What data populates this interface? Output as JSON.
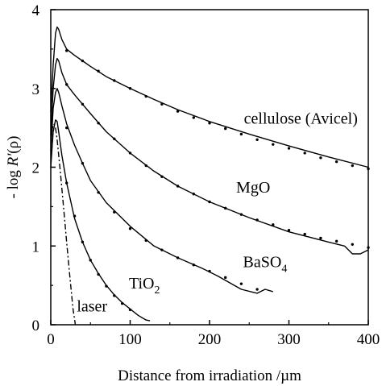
{
  "chart_data": {
    "type": "line",
    "xlabel": "Distance from irradiation /µm",
    "ylabel_parts": {
      "prefix": "- log ",
      "sym": "R'",
      "suffix": "(ρ)"
    },
    "xlim": [
      0,
      400
    ],
    "ylim": [
      0,
      4
    ],
    "x_ticks": [
      0,
      100,
      200,
      300,
      400
    ],
    "y_ticks": [
      0,
      1,
      2,
      3,
      4
    ],
    "x_tick_labels": [
      "0",
      "100",
      "200",
      "300",
      "400"
    ],
    "y_tick_labels": [
      "0",
      "1",
      "2",
      "3",
      "4"
    ],
    "grid": false,
    "legend": "none",
    "series": [
      {
        "label": "cellulose (Avicel)",
        "label_parts": {
          "main": "cellulose (Avicel)",
          "sub": ""
        },
        "style": "solid",
        "x": [
          0,
          3,
          6,
          8,
          10,
          14,
          20,
          30,
          40,
          50,
          70,
          100,
          130,
          160,
          200,
          250,
          300,
          350,
          400
        ],
        "y": [
          2.7,
          3.3,
          3.7,
          3.78,
          3.75,
          3.62,
          3.5,
          3.42,
          3.35,
          3.28,
          3.15,
          3.0,
          2.86,
          2.73,
          2.58,
          2.42,
          2.27,
          2.13,
          2.0
        ]
      },
      {
        "label": "MgO",
        "label_parts": {
          "main": "MgO",
          "sub": ""
        },
        "style": "solid",
        "x": [
          0,
          3,
          6,
          8,
          10,
          14,
          20,
          30,
          40,
          50,
          70,
          100,
          130,
          160,
          200,
          250,
          300,
          350,
          370,
          380,
          390,
          400
        ],
        "y": [
          2.4,
          3.0,
          3.3,
          3.38,
          3.35,
          3.2,
          3.05,
          2.92,
          2.8,
          2.68,
          2.45,
          2.18,
          1.95,
          1.76,
          1.56,
          1.36,
          1.18,
          1.05,
          1.0,
          0.9,
          0.9,
          0.95
        ]
      },
      {
        "label": "BaSO4",
        "label_parts": {
          "main": "BaSO",
          "sub": "4"
        },
        "style": "solid",
        "x": [
          0,
          3,
          6,
          8,
          10,
          14,
          20,
          30,
          40,
          50,
          70,
          100,
          130,
          160,
          190,
          210,
          240,
          260,
          270,
          280
        ],
        "y": [
          2.2,
          2.75,
          2.95,
          3.0,
          2.95,
          2.78,
          2.55,
          2.28,
          2.05,
          1.83,
          1.55,
          1.25,
          1.0,
          0.85,
          0.72,
          0.62,
          0.45,
          0.4,
          0.45,
          0.42
        ]
      },
      {
        "label": "TiO2",
        "label_parts": {
          "main": "TiO",
          "sub": "2"
        },
        "style": "solid",
        "x": [
          0,
          3,
          6,
          8,
          10,
          14,
          20,
          30,
          40,
          50,
          60,
          70,
          80,
          90,
          100,
          110,
          120,
          125
        ],
        "y": [
          2.0,
          2.45,
          2.6,
          2.58,
          2.45,
          2.15,
          1.8,
          1.35,
          1.05,
          0.82,
          0.65,
          0.5,
          0.38,
          0.28,
          0.2,
          0.12,
          0.06,
          0.05
        ]
      },
      {
        "label": "laser",
        "label_parts": {
          "main": "laser",
          "sub": ""
        },
        "style": "dashdot",
        "x": [
          0,
          2,
          4,
          6,
          8,
          12,
          16,
          20,
          24,
          28,
          31
        ],
        "y": [
          2.3,
          2.5,
          2.55,
          2.5,
          2.35,
          1.95,
          1.5,
          1.05,
          0.62,
          0.2,
          0.0
        ]
      }
    ],
    "fit_points": [
      {
        "series": "cellulose (Avicel)",
        "x": [
          20,
          40,
          60,
          80,
          100,
          120,
          140,
          160,
          180,
          200,
          220,
          240,
          260,
          280,
          300,
          320,
          340,
          360,
          380,
          400
        ],
        "y": [
          3.48,
          3.35,
          3.22,
          3.1,
          3.0,
          2.9,
          2.8,
          2.71,
          2.63,
          2.56,
          2.49,
          2.42,
          2.35,
          2.29,
          2.24,
          2.18,
          2.12,
          2.07,
          2.02,
          1.98
        ]
      },
      {
        "series": "MgO",
        "x": [
          20,
          40,
          60,
          80,
          100,
          120,
          140,
          160,
          180,
          200,
          220,
          240,
          260,
          280,
          300,
          320,
          340,
          360,
          380,
          400
        ],
        "y": [
          3.05,
          2.8,
          2.56,
          2.36,
          2.18,
          2.02,
          1.88,
          1.76,
          1.66,
          1.56,
          1.48,
          1.4,
          1.33,
          1.27,
          1.2,
          1.15,
          1.1,
          1.06,
          1.02,
          0.98
        ]
      },
      {
        "series": "BaSO4",
        "x": [
          20,
          40,
          60,
          80,
          100,
          120,
          140,
          160,
          180,
          200,
          220,
          240,
          260
        ],
        "y": [
          2.5,
          2.05,
          1.68,
          1.43,
          1.22,
          1.07,
          0.95,
          0.85,
          0.76,
          0.68,
          0.6,
          0.52,
          0.45
        ]
      },
      {
        "series": "TiO2",
        "x": [
          20,
          30,
          40,
          50,
          60,
          70,
          80,
          90,
          100
        ],
        "y": [
          1.8,
          1.38,
          1.05,
          0.82,
          0.64,
          0.49,
          0.37,
          0.27,
          0.19
        ]
      }
    ],
    "annotations": [
      {
        "text_parts": {
          "main": "cellulose (Avicel)",
          "sub": ""
        },
        "x": 315,
        "y": 2.55
      },
      {
        "text_parts": {
          "main": "MgO",
          "sub": ""
        },
        "x": 255,
        "y": 1.68
      },
      {
        "text_parts": {
          "main": "BaSO",
          "sub": "4"
        },
        "x": 270,
        "y": 0.73
      },
      {
        "text_parts": {
          "main": "TiO",
          "sub": "2"
        },
        "x": 118,
        "y": 0.46
      },
      {
        "text_parts": {
          "main": "laser",
          "sub": ""
        },
        "x": 52,
        "y": 0.17
      }
    ],
    "colors": {
      "line": "#000000",
      "background": "#ffffff"
    }
  }
}
